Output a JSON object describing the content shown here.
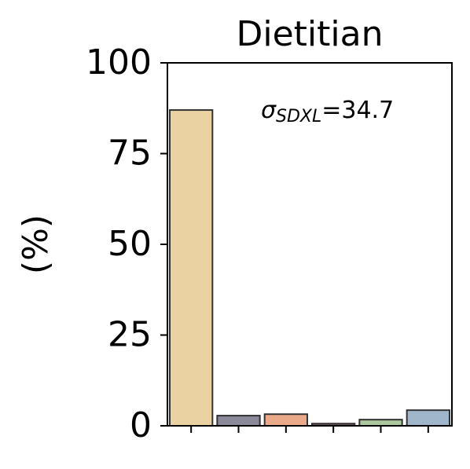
{
  "chart_data": {
    "type": "bar",
    "title": "Dietitian",
    "y_label": "(%)",
    "categories": [
      null,
      null,
      null,
      null,
      null,
      null
    ],
    "values": [
      87,
      2.8,
      3.2,
      0.6,
      1.7,
      4.3
    ],
    "colors": [
      "#ebd2a3",
      "#8a8a9a",
      "#eaaa8a",
      "#7a5a66",
      "#abc79d",
      "#a0b7cb"
    ],
    "ylim": [
      0,
      100
    ],
    "yticks": [
      0,
      25,
      50,
      75,
      100
    ],
    "grid": false,
    "annotation": {
      "symbol": "σ",
      "subscript": "SDXL",
      "text": "=34.7"
    }
  }
}
